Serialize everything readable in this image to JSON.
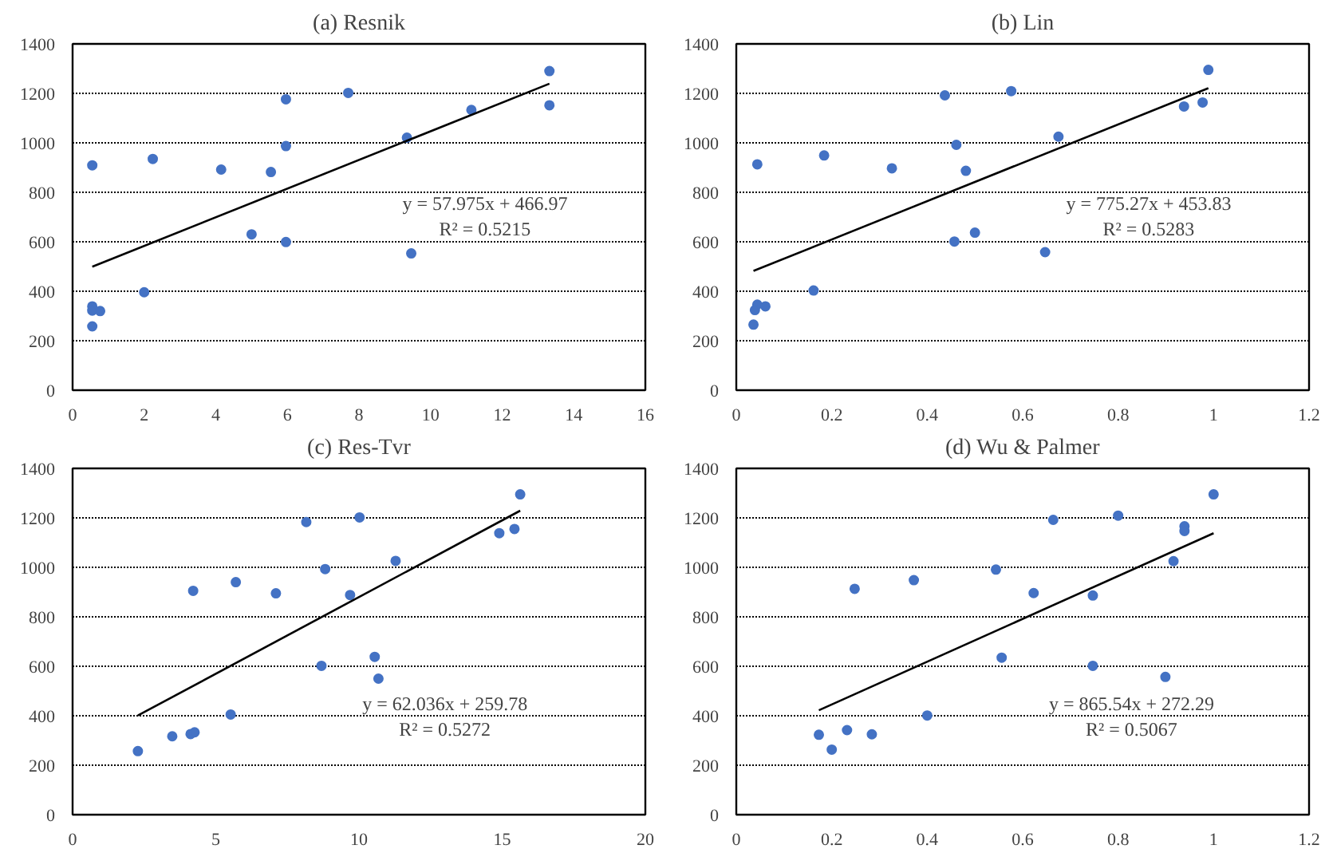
{
  "chart_data": [
    {
      "type": "scatter",
      "title": "(a) Resnik",
      "xlim": [
        0,
        16
      ],
      "ylim": [
        0,
        1400
      ],
      "xticks": [
        0,
        2,
        4,
        6,
        8,
        10,
        12,
        14,
        16
      ],
      "yticks": [
        0,
        200,
        400,
        600,
        800,
        1000,
        1200,
        1400
      ],
      "grid": "y",
      "annotations": [
        "y = 57.975x + 466.97",
        "R² = 0.5215"
      ],
      "series": [
        {
          "marker": "circle",
          "color": "#4472c4",
          "x": [
            0.55,
            2.24,
            4.15,
            5.54,
            5.0,
            5.96,
            5.96,
            5.96,
            7.7,
            9.34,
            9.46,
            11.14,
            13.32,
            13.32,
            2.0,
            0.55,
            0.55,
            0.77,
            0.55
          ],
          "values": [
            909,
            935,
            892,
            882,
            630,
            1176,
            987,
            599,
            1202,
            1021,
            553,
            1133,
            1290,
            1152,
            396,
            339,
            322,
            320,
            258
          ]
        },
        {
          "type": "line",
          "color": "#000000",
          "line_style": "solid",
          "x": [
            0.55,
            13.32
          ],
          "values": [
            499,
            1239
          ]
        }
      ]
    },
    {
      "type": "scatter",
      "title": "(b) Lin",
      "xlim": [
        0,
        1.2
      ],
      "ylim": [
        0,
        1400
      ],
      "xticks": [
        0,
        0.2,
        0.4,
        0.6,
        0.8,
        1,
        1.2
      ],
      "yticks": [
        0,
        200,
        400,
        600,
        800,
        1000,
        1200,
        1400
      ],
      "grid": "y",
      "annotations": [
        "y = 775.27x + 453.83",
        "R² = 0.5283"
      ],
      "series": [
        {
          "marker": "circle",
          "color": "#4472c4",
          "x": [
            0.044,
            0.184,
            0.326,
            0.437,
            0.461,
            0.481,
            0.457,
            0.5,
            0.576,
            0.647,
            0.675,
            0.938,
            0.977,
            0.989,
            0.162,
            0.044,
            0.039,
            0.061,
            0.036
          ],
          "values": [
            913,
            949,
            897,
            1192,
            992,
            887,
            601,
            637,
            1209,
            558,
            1025,
            1147,
            1163,
            1295,
            403,
            346,
            324,
            339,
            265
          ]
        },
        {
          "type": "line",
          "color": "#000000",
          "line_style": "solid",
          "x": [
            0.036,
            0.989
          ],
          "values": [
            482,
            1221
          ]
        }
      ]
    },
    {
      "type": "scatter",
      "title": "(c) Res-Tvr",
      "xlim": [
        0,
        20
      ],
      "ylim": [
        0,
        1400
      ],
      "xticks": [
        0,
        5,
        10,
        15,
        20
      ],
      "yticks": [
        0,
        200,
        400,
        600,
        800,
        1000,
        1200,
        1400
      ],
      "grid": "y",
      "annotations": [
        "y = 62.036x + 259.78",
        "R² = 0.5272"
      ],
      "series": [
        {
          "marker": "circle",
          "color": "#4472c4",
          "x": [
            2.28,
            3.48,
            4.12,
            4.26,
            5.52,
            4.21,
            5.7,
            7.1,
            8.16,
            8.82,
            8.69,
            9.69,
            10.02,
            10.55,
            10.68,
            11.28,
            14.9,
            15.43,
            15.63
          ],
          "values": [
            257,
            317,
            326,
            333,
            405,
            905,
            940,
            895,
            1183,
            993,
            602,
            888,
            1202,
            638,
            550,
            1026,
            1138,
            1155,
            1295
          ]
        },
        {
          "type": "line",
          "color": "#000000",
          "line_style": "solid",
          "x": [
            2.28,
            15.63
          ],
          "values": [
            401,
            1229
          ]
        }
      ]
    },
    {
      "type": "scatter",
      "title": "(d) Wu & Palmer",
      "xlim": [
        0,
        1.2
      ],
      "ylim": [
        0,
        1400
      ],
      "xticks": [
        0,
        0.2,
        0.4,
        0.6,
        0.8,
        1,
        1.2
      ],
      "yticks": [
        0,
        200,
        400,
        600,
        800,
        1000,
        1200,
        1400
      ],
      "grid": "y",
      "annotations": [
        "y = 865.54x + 272.29",
        "R² = 0.5067"
      ],
      "series": [
        {
          "marker": "circle",
          "color": "#4472c4",
          "x": [
            0.173,
            0.2,
            0.232,
            0.284,
            0.4,
            0.248,
            0.372,
            0.544,
            0.556,
            0.623,
            0.664,
            0.747,
            0.747,
            0.8,
            0.899,
            0.916,
            0.939,
            0.939,
            1.0
          ],
          "values": [
            323,
            263,
            342,
            325,
            401,
            913,
            948,
            991,
            635,
            896,
            1192,
            886,
            602,
            1209,
            557,
            1025,
            1166,
            1147,
            1295
          ]
        },
        {
          "type": "line",
          "color": "#000000",
          "line_style": "solid",
          "x": [
            0.173,
            1.0
          ],
          "values": [
            422,
            1138
          ]
        }
      ]
    }
  ]
}
